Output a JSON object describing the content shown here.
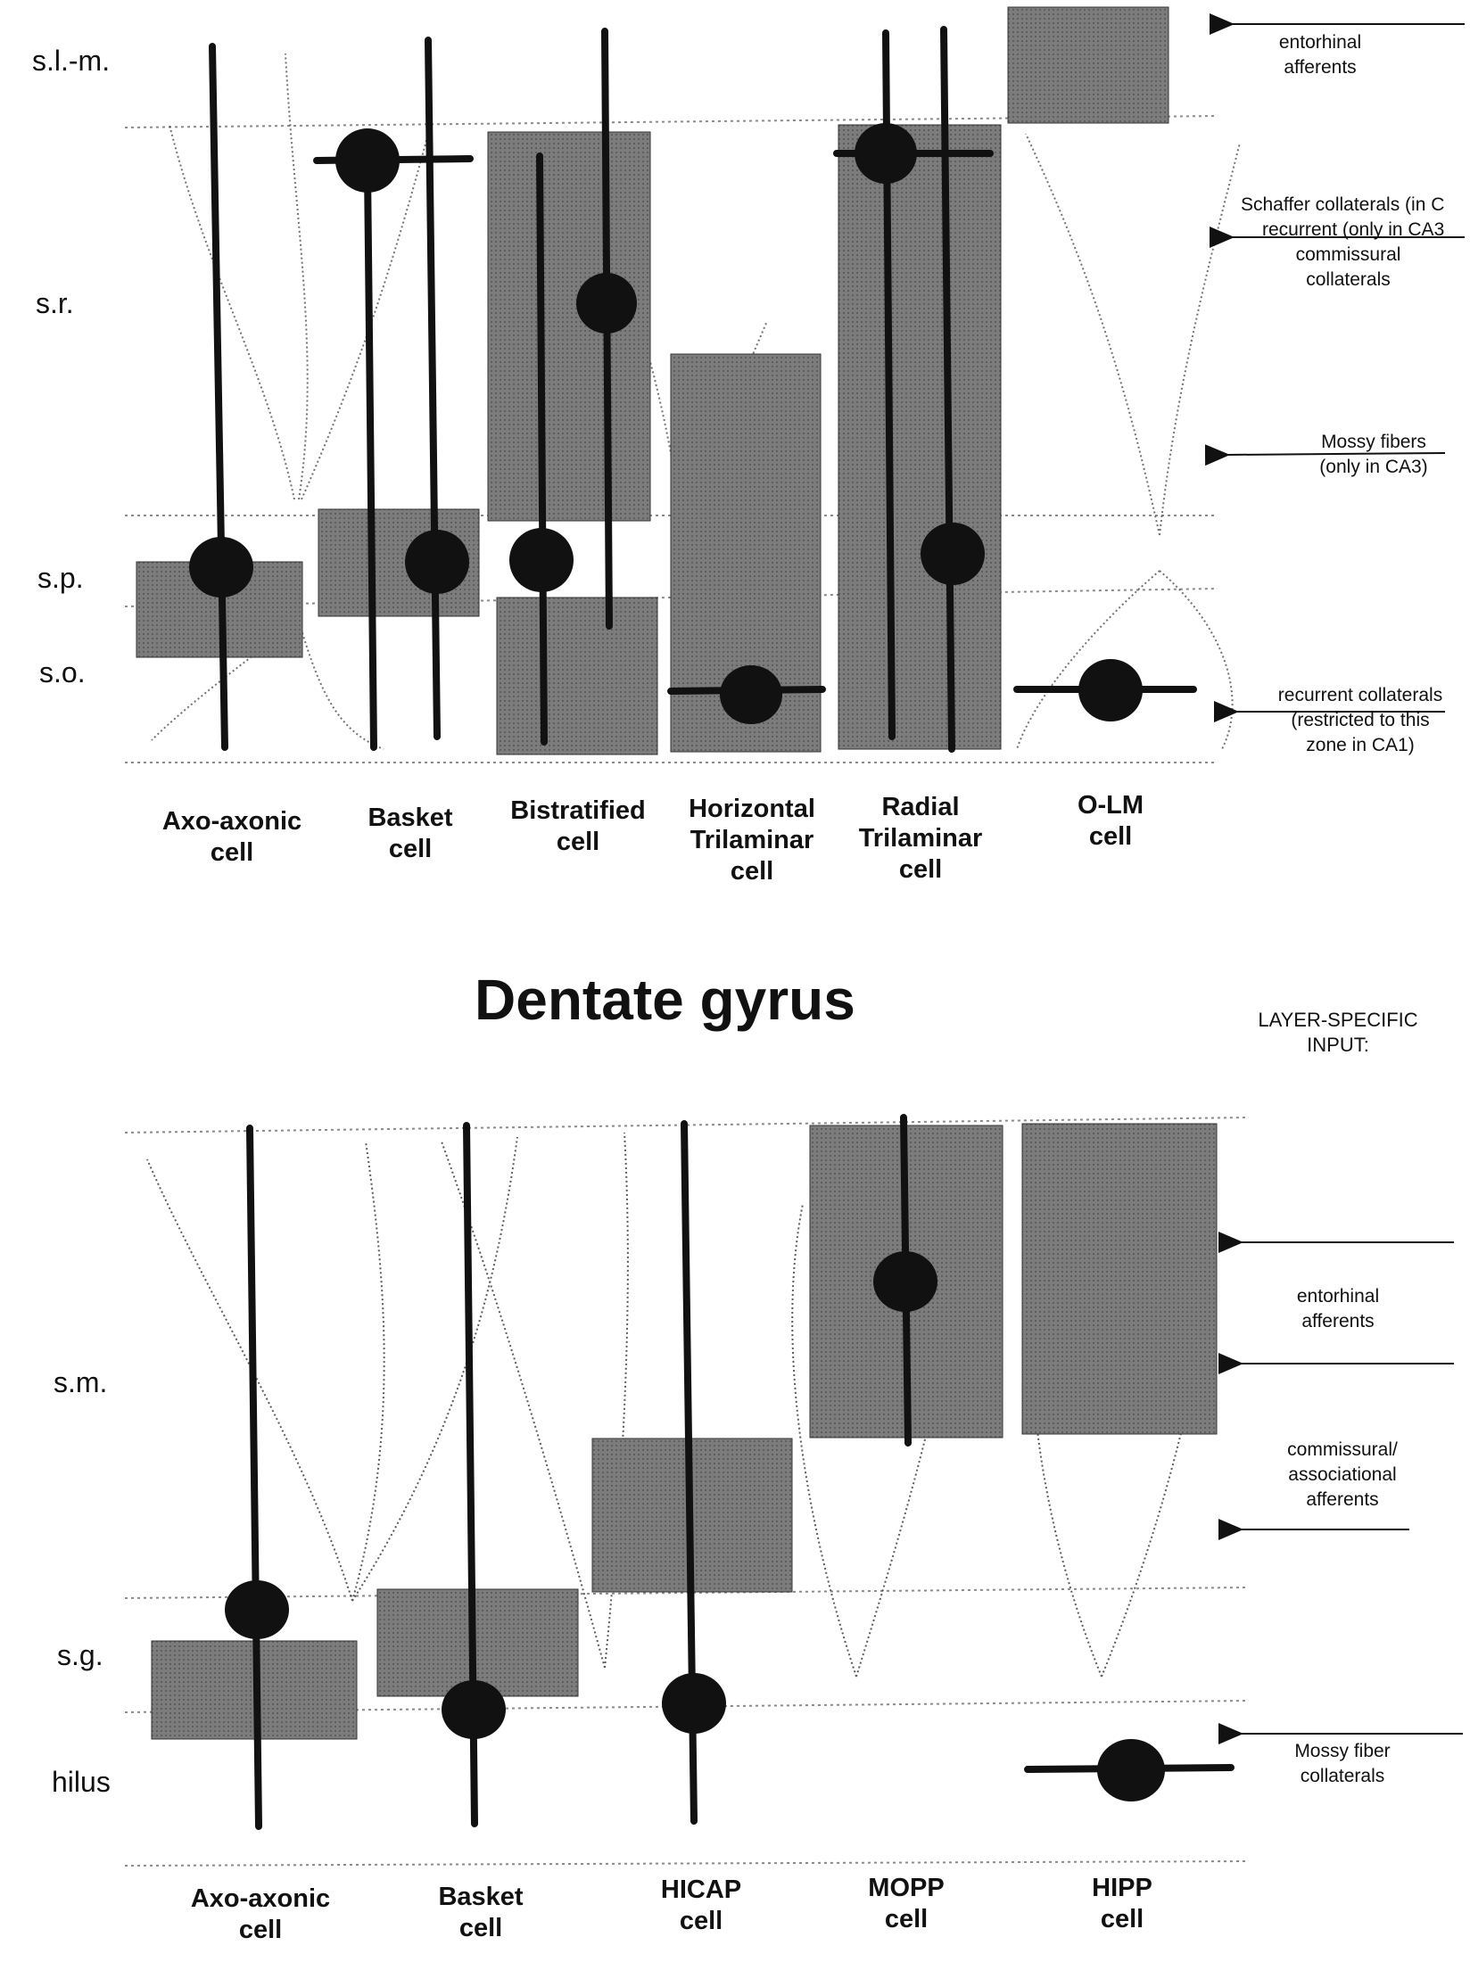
{
  "ca_section": {
    "layers": [
      "s.l.-m.",
      "s.r.",
      "s.p.",
      "s.o."
    ],
    "cells": [
      [
        "Axo-axonic",
        "cell"
      ],
      [
        "Basket",
        "cell"
      ],
      [
        "Bistratified",
        "cell"
      ],
      [
        "Horizontal",
        "Trilaminar",
        "cell"
      ],
      [
        "Radial",
        "Trilaminar",
        "cell"
      ],
      [
        "O-LM",
        "cell"
      ]
    ],
    "inputs": [
      [
        "entorhinal",
        "afferents"
      ],
      [
        "Schaffer collaterals (in C",
        "recurrent (only in CA3",
        "commissural",
        "collaterals"
      ],
      [
        "Mossy fibers",
        "(only in CA3)"
      ],
      [
        "recurrent collaterals",
        "(restricted to this",
        "zone in CA1)"
      ]
    ]
  },
  "dg_section": {
    "title": "Dentate gyrus",
    "input_heading": [
      "LAYER-SPECIFIC",
      "INPUT:"
    ],
    "layers": [
      "s.m.",
      "s.g.",
      "hilus"
    ],
    "cells": [
      [
        "Axo-axonic",
        "cell"
      ],
      [
        "Basket",
        "cell"
      ],
      [
        "HICAP",
        "cell"
      ],
      [
        "MOPP",
        "cell"
      ],
      [
        "HIPP",
        "cell"
      ]
    ],
    "inputs": [
      [
        "entorhinal",
        "afferents"
      ],
      [
        "commissural/",
        "associational",
        "afferents"
      ],
      [
        "Mossy fiber",
        "collaterals"
      ]
    ]
  },
  "colors": {
    "ink": "#111111",
    "shade": "#7c7c7c",
    "boundary": "#8a8a8a",
    "dendrite": "#444444"
  }
}
